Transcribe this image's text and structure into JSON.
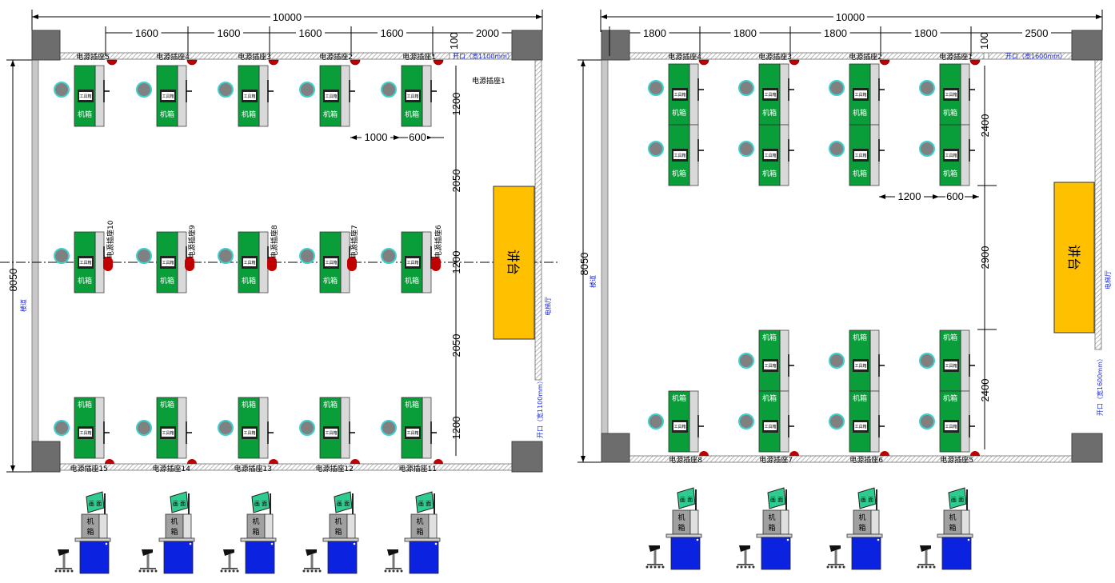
{
  "left_plan": {
    "overall_width": "10000",
    "overall_height": "8050",
    "column_spacing": [
      "1600",
      "1600",
      "1600",
      "1600",
      "2000"
    ],
    "right_offset": "100",
    "opening_label": "开口（宽1100mm）",
    "opening_label_side": "开口（宽1100mm）",
    "corridor": "楼道",
    "elevator_hall": "电梯厅",
    "stage": "讲台",
    "row_gap_1": "2050",
    "row_gap_2": "2050",
    "desk_depth_1": "1200",
    "desk_depth_2": "1200",
    "desk_depth_3": "1200",
    "aisle_1": "1000",
    "aisle_2": "600",
    "outlet_note": "电源插座1",
    "top_outlets": [
      "电源插座5",
      "电源插座4",
      "电源插座3",
      "电源插座2",
      "电源插座1"
    ],
    "middle_outlets": [
      "电源插座10",
      "电源插座9",
      "电源插座8",
      "电源插座7",
      "电源插座6"
    ],
    "bottom_outlets": [
      "电源插座15",
      "电源插座14",
      "电源插座13",
      "电源插座12",
      "电源插座11"
    ],
    "case_label": "机箱",
    "toolbox_label": "工具箱"
  },
  "right_plan": {
    "overall_width": "10000",
    "overall_height": "8050",
    "column_spacing": [
      "1800",
      "1800",
      "1800",
      "1800",
      "2500"
    ],
    "right_offset": "100",
    "opening_label": "开口（宽1600mm）",
    "opening_label_side": "开口（宽1600mm）",
    "corridor": "楼道",
    "elevator_hall": "电梯厅",
    "stage": "讲台",
    "gap_upper": "2400",
    "gap_middle": "2900",
    "gap_lower": "2400",
    "aisle_1": "1200",
    "aisle_2": "600",
    "top_outlets": [
      "电源插座4",
      "电源插座3",
      "电源插座2",
      "电源插座1"
    ],
    "bottom_outlets": [
      "电源插座8",
      "电源插座7",
      "电源插座6",
      "电源插座5"
    ],
    "case_label": "机箱",
    "toolbox_label": "工具箱"
  },
  "elevation": {
    "monitor_text": "画 面",
    "case_text_top": "机",
    "case_text_bottom": "箱"
  },
  "colors": {
    "desk_green": "#0a9e3a",
    "desk_gray": "#d9d9d9",
    "wall_gray": "#c8c8c8",
    "pillar": "#6d6d6d",
    "stage_yellow": "#ffc000",
    "outlet_red": "#c00000",
    "chair_gray": "#808080",
    "chair_ring": "#40d0d0",
    "cabinet_blue": "#0b22e0",
    "monitor_green": "#2ecc8f",
    "label_blue": "#1f2fd6"
  }
}
